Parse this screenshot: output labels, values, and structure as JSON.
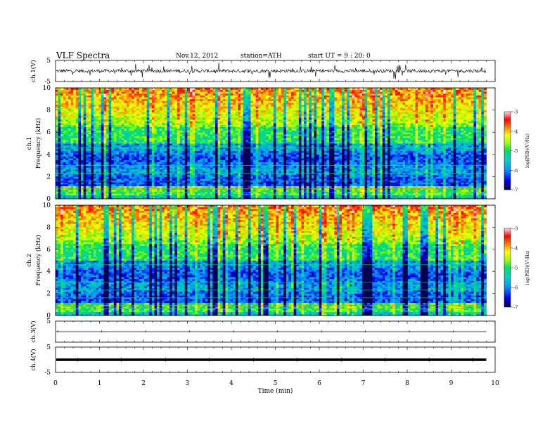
{
  "header": {
    "title": "VLF Spectra",
    "date": "Nov.12, 2012",
    "station": "station=ATH",
    "start": "start UT =  9 : 20: 0"
  },
  "chart_data": [
    {
      "type": "line",
      "id": "ch1-waveform",
      "ylabel": "ch.1(V)",
      "ylim": [
        -5,
        5
      ],
      "yticks": [
        5,
        -5
      ],
      "description": "noisy waveform around 0 V"
    },
    {
      "type": "heatmap",
      "id": "ch1-spectrogram",
      "ylabel": "ch.1 Frequency (kHz)",
      "ylim": [
        0,
        10
      ],
      "yticks": [
        0,
        2,
        4,
        6,
        8,
        10
      ],
      "colorbar": {
        "label": "log(PSD)(V²/Hz)",
        "ticks": [
          "-3",
          "-4",
          "-5",
          "-6",
          "-7"
        ],
        "range": [
          -7,
          -3
        ]
      }
    },
    {
      "type": "heatmap",
      "id": "ch2-spectrogram",
      "ylabel": "ch.2 Frequency (kHz)",
      "ylim": [
        0,
        10
      ],
      "yticks": [
        0,
        2,
        4,
        6,
        8,
        10
      ],
      "colorbar": {
        "label": "log(PSD)(V²/Hz)",
        "ticks": [
          "-3",
          "-4",
          "-5",
          "-6",
          "-7"
        ],
        "range": [
          -7,
          -3
        ]
      }
    },
    {
      "type": "line",
      "id": "ch3-waveform",
      "ylabel": "ch.3(V)",
      "ylim": [
        -5,
        5
      ],
      "yticks": [
        5
      ],
      "description": "flat line near 0 V"
    },
    {
      "type": "line",
      "id": "ch4-waveform",
      "ylabel": "ch.4(V)",
      "ylim": [
        -5,
        5
      ],
      "yticks": [
        5,
        -5
      ],
      "description": "thick flat band near 0 V"
    }
  ],
  "xaxis": {
    "label": "Time  (min)",
    "xlim": [
      0,
      10
    ],
    "ticks": [
      "0",
      "1",
      "2",
      "3",
      "4",
      "5",
      "6",
      "7",
      "8",
      "9",
      "10"
    ],
    "data_end": 9.8
  },
  "colors": {
    "colormap": [
      "#000080",
      "#0000ff",
      "#0080ff",
      "#00c0c0",
      "#00e060",
      "#80ff00",
      "#ffff00",
      "#ff8000",
      "#ff0000",
      "#ffffff"
    ]
  }
}
